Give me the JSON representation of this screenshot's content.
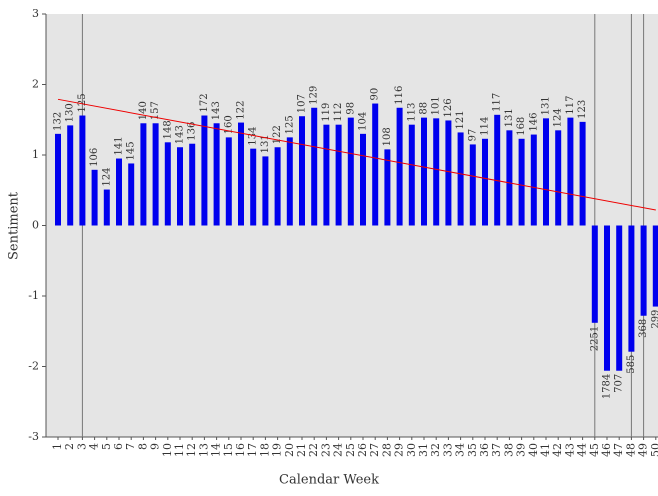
{
  "chart_data": {
    "type": "bar",
    "xlabel": "Calendar Week",
    "ylabel": "Sentiment",
    "categories": [
      "1",
      "2",
      "3",
      "4",
      "5",
      "6",
      "7",
      "8",
      "9",
      "10",
      "11",
      "12",
      "13",
      "14",
      "15",
      "16",
      "17",
      "18",
      "19",
      "20",
      "21",
      "22",
      "23",
      "24",
      "25",
      "26",
      "27",
      "28",
      "29",
      "30",
      "31",
      "32",
      "33",
      "34",
      "35",
      "36",
      "37",
      "38",
      "39",
      "40",
      "41",
      "42",
      "43",
      "44",
      "45",
      "46",
      "47",
      "48",
      "49",
      "50"
    ],
    "values": [
      1.3,
      1.42,
      1.56,
      0.79,
      0.51,
      0.95,
      0.88,
      1.45,
      1.45,
      1.18,
      1.11,
      1.16,
      1.56,
      1.45,
      1.25,
      1.46,
      1.09,
      0.98,
      1.11,
      1.25,
      1.55,
      1.67,
      1.43,
      1.43,
      1.53,
      1.3,
      1.73,
      1.08,
      1.67,
      1.43,
      1.53,
      1.52,
      1.49,
      1.32,
      1.15,
      1.23,
      1.57,
      1.35,
      1.23,
      1.29,
      1.52,
      1.35,
      1.53,
      1.47,
      -1.38,
      -2.06,
      -2.06,
      -1.79,
      -1.28,
      -1.15
    ],
    "counts": [
      132,
      130,
      125,
      106,
      124,
      141,
      145,
      140,
      157,
      148,
      143,
      136,
      172,
      143,
      160,
      122,
      134,
      131,
      122,
      125,
      107,
      129,
      119,
      112,
      98,
      104,
      90,
      108,
      116,
      113,
      88,
      101,
      126,
      121,
      97,
      114,
      117,
      131,
      168,
      146,
      131,
      124,
      117,
      123,
      2251,
      1784,
      707,
      585,
      368,
      299
    ],
    "color": "#0000ee",
    "vlines": [
      3,
      45,
      48,
      49
    ],
    "trend": {
      "color": "#ee0000",
      "x": [
        1,
        50
      ],
      "values": [
        1.79,
        0.22
      ]
    },
    "ylim": [
      -3,
      3
    ],
    "yticks": [
      -3,
      -2,
      -1,
      0,
      1,
      2,
      3
    ]
  }
}
